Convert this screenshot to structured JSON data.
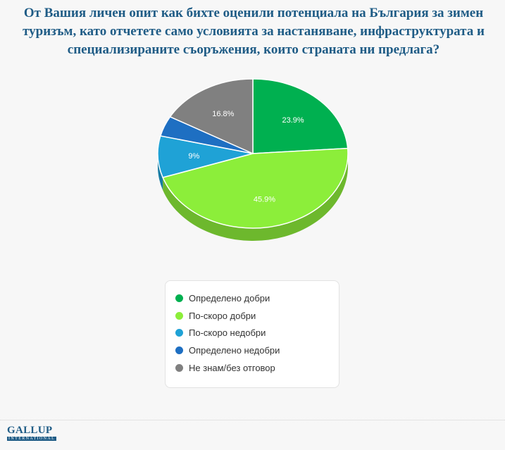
{
  "chart_data": {
    "type": "pie",
    "title": "От Вашия личен опит как бихте оценили потенциала на България за зимен туризъм, като отчетете само условията за настаняване, инфраструктурата и специализираните съоръжения, които страната ни предлага?",
    "slices": [
      {
        "label": "Определено добри",
        "value": 23.9,
        "value_label": "23.9%",
        "color": "#00b050",
        "side_color": "#00883d"
      },
      {
        "label": "По-скоро добри",
        "value": 45.9,
        "value_label": "45.9%",
        "color": "#8cee3a",
        "side_color": "#6db82d"
      },
      {
        "label": "По-скоро недобри",
        "value": 9,
        "value_label": "9%",
        "color": "#1fa2d6",
        "side_color": "#177ca4"
      },
      {
        "label": "Определено недобри",
        "value": 4.4,
        "value_label": "",
        "color": "#1e6fc2",
        "side_color": "#16548f"
      },
      {
        "label": "Не знам/без отговор",
        "value": 16.8,
        "value_label": "16.8%",
        "color": "#808080",
        "side_color": "#5f5f5f"
      }
    ],
    "legend_position": "bottom-center"
  },
  "logo": {
    "main": "GALLUP",
    "sub": "INTERNATIONAL"
  }
}
